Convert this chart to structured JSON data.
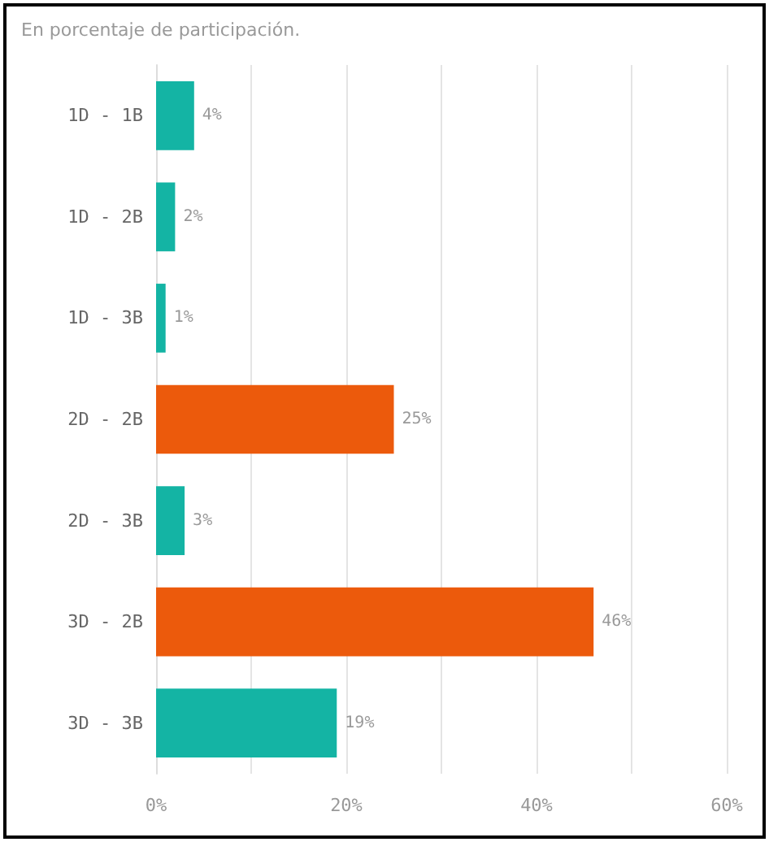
{
  "chart_data": {
    "type": "bar",
    "orientation": "horizontal",
    "title": "En porcentaje de participación.",
    "categories": [
      "1D - 1B",
      "1D - 2B",
      "1D - 3B",
      "2D - 2B",
      "2D - 3B",
      "3D - 2B",
      "3D - 3B"
    ],
    "values": [
      4,
      2,
      1,
      25,
      3,
      46,
      19
    ],
    "colors": [
      "#14b4a4",
      "#14b4a4",
      "#14b4a4",
      "#ec5a0c",
      "#14b4a4",
      "#ec5a0c",
      "#14b4a4"
    ],
    "value_labels": [
      "4%",
      "2%",
      "1%",
      "25%",
      "3%",
      "46%",
      "19%"
    ],
    "xlim": [
      0,
      60
    ],
    "xticks": [
      {
        "value": 0,
        "label": "0%"
      },
      {
        "value": 10,
        "label": null
      },
      {
        "value": 20,
        "label": "20%"
      },
      {
        "value": 30,
        "label": null
      },
      {
        "value": 40,
        "label": "40%"
      },
      {
        "value": 50,
        "label": null
      },
      {
        "value": 60,
        "label": "60%"
      }
    ],
    "grid": "x"
  }
}
